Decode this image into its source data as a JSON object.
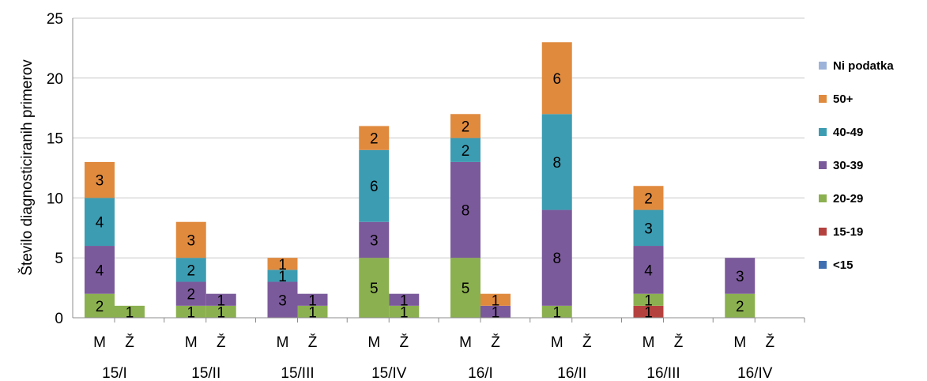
{
  "chart_data": {
    "type": "bar",
    "stacked": true,
    "title": "",
    "xlabel": "",
    "ylabel": "Število diagnosticiranih primerov",
    "ylim": [
      0,
      25
    ],
    "yticks": [
      0,
      5,
      10,
      15,
      20,
      25
    ],
    "grid": true,
    "legend_position": "right",
    "categories": [
      "M",
      "Ž",
      "M",
      "Ž",
      "M",
      "Ž",
      "M",
      "Ž",
      "M",
      "Ž",
      "M",
      "Ž",
      "M",
      "Ž",
      "M",
      "Ž"
    ],
    "groups": [
      "15/I",
      "15/II",
      "15/III",
      "15/IV",
      "16/I",
      "16/II",
      "16/III",
      "16/IV"
    ],
    "series": [
      {
        "name": "<15",
        "color": "#3f6fb0",
        "values": [
          0,
          0,
          0,
          0,
          0,
          0,
          0,
          0,
          0,
          0,
          0,
          0,
          0,
          0,
          0,
          0
        ]
      },
      {
        "name": "15-19",
        "color": "#b5413e",
        "values": [
          0,
          0,
          0,
          0,
          0,
          0,
          0,
          0,
          0,
          0,
          0,
          0,
          1,
          0,
          0,
          0
        ]
      },
      {
        "name": "20-29",
        "color": "#8bb04f",
        "values": [
          2,
          1,
          1,
          1,
          0,
          1,
          5,
          1,
          5,
          0,
          1,
          0,
          1,
          0,
          2,
          0
        ]
      },
      {
        "name": "30-39",
        "color": "#7b5a9b",
        "values": [
          4,
          0,
          2,
          1,
          3,
          1,
          3,
          1,
          8,
          1,
          8,
          0,
          4,
          0,
          3,
          0
        ]
      },
      {
        "name": "40-49",
        "color": "#3c9cb2",
        "values": [
          4,
          0,
          2,
          0,
          1,
          0,
          6,
          0,
          2,
          0,
          8,
          0,
          3,
          0,
          0,
          0
        ]
      },
      {
        "name": "50+",
        "color": "#e08a3e",
        "values": [
          3,
          0,
          3,
          0,
          1,
          0,
          2,
          0,
          2,
          1,
          6,
          0,
          2,
          0,
          0,
          0
        ]
      },
      {
        "name": "Ni podatka",
        "color": "#9db3d9",
        "values": [
          0,
          0,
          0,
          0,
          0,
          0,
          0,
          0,
          0,
          0,
          0,
          0,
          0,
          0,
          0,
          0
        ]
      }
    ],
    "legend_order": [
      "Ni podatka",
      "50+",
      "40-49",
      "30-39",
      "20-29",
      "15-19",
      "<15"
    ],
    "colors": {
      "gridline": "#c8c8c8",
      "axis": "#8c8c8c"
    }
  }
}
